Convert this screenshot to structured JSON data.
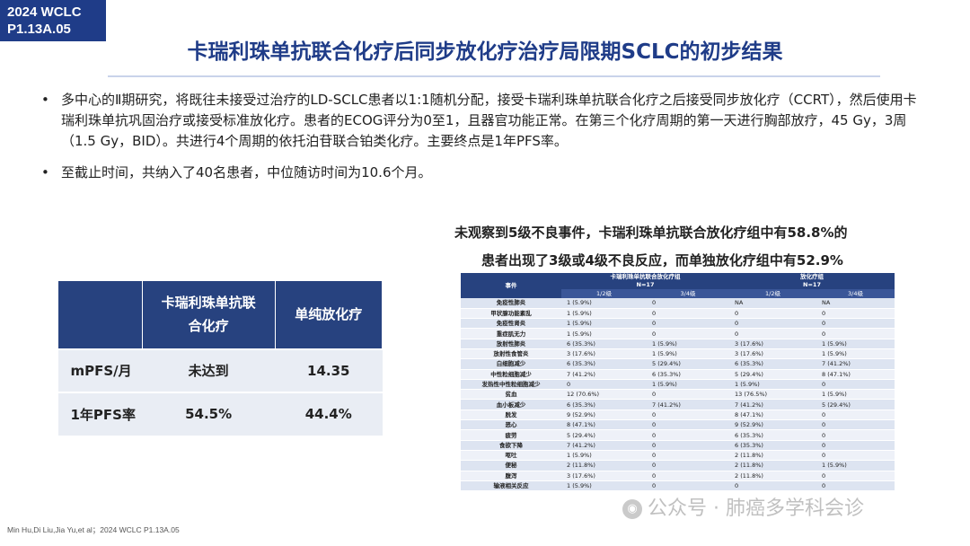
{
  "badge": {
    "line1": "2024 WCLC",
    "line2": "P1.13A.05"
  },
  "title": "卡瑞利珠单抗联合化疗后同步放化疗治疗局限期SCLC的初步结果",
  "bullets": [
    "多中心的Ⅱ期研究，将既往未接受过治疗的LD-SCLC患者以1:1随机分配，接受卡瑞利珠单抗联合化疗之后接受同步放化疗（CCRT），然后使用卡瑞利珠单抗巩固治疗或接受标准放化疗。患者的ECOG评分为0至1，且器官功能正常。在第三个化疗周期的第一天进行胸部放疗，45 Gy，3周（1.5 Gy，BID）。共进行4个周期的依托泊苷联合铂类化疗。主要终点是1年PFS率。",
    "至截止时间，共纳入了40名患者，中位随访时间为10.6个月。"
  ],
  "bullet_symbol": "•",
  "summary": {
    "line1": "未观察到5级不良事件，卡瑞利珠单抗联合放化疗组中有58.8%的",
    "line2": "患者出现了3级或4级不良反应，而单独放化疗组中有52.9%"
  },
  "comparison": {
    "headers": [
      "",
      "卡瑞利珠单抗联合化疗",
      "单纯放化疗"
    ],
    "rows": [
      {
        "label": "mPFS/月",
        "a": "未达到",
        "b": "14.35"
      },
      {
        "label": "1年PFS率",
        "a": "54.5%",
        "b": "44.4%"
      }
    ]
  },
  "ae_table": {
    "event_header": "事件",
    "group_a": "卡瑞利珠单抗联合放化疗组",
    "group_a_n": "N=17",
    "group_b": "放化疗组",
    "group_b_n": "N=17",
    "grade_headers": [
      "1/2级",
      "3/4级",
      "1/2级",
      "3/4级"
    ],
    "rows": [
      [
        "免疫性肺炎",
        "1 (5.9%)",
        "0",
        "NA",
        "NA"
      ],
      [
        "甲状腺功能紊乱",
        "1 (5.9%)",
        "0",
        "0",
        "0"
      ],
      [
        "免疫性肾炎",
        "1 (5.9%)",
        "0",
        "0",
        "0"
      ],
      [
        "重症肌无力",
        "1 (5.9%)",
        "0",
        "0",
        "0"
      ],
      [
        "放射性肺炎",
        "6 (35.3%)",
        "1 (5.9%)",
        "3 (17.6%)",
        "1 (5.9%)"
      ],
      [
        "放射性食管炎",
        "3 (17.6%)",
        "1 (5.9%)",
        "3 (17.6%)",
        "1 (5.9%)"
      ],
      [
        "白细胞减少",
        "6 (35.3%)",
        "5 (29.4%)",
        "6 (35.3%)",
        "7 (41.2%)"
      ],
      [
        "中性粒细胞减少",
        "7 (41.2%)",
        "6 (35.3%)",
        "5 (29.4%)",
        "8 (47.1%)"
      ],
      [
        "发热性中性粒细胞减少",
        "0",
        "1 (5.9%)",
        "1 (5.9%)",
        "0"
      ],
      [
        "贫血",
        "12 (70.6%)",
        "0",
        "13 (76.5%)",
        "1 (5.9%)"
      ],
      [
        "血小板减少",
        "6 (35.3%)",
        "7 (41.2%)",
        "7 (41.2%)",
        "5 (29.4%)"
      ],
      [
        "脱发",
        "9 (52.9%)",
        "0",
        "8 (47.1%)",
        "0"
      ],
      [
        "恶心",
        "8 (47.1%)",
        "0",
        "9 (52.9%)",
        "0"
      ],
      [
        "疲劳",
        "5 (29.4%)",
        "0",
        "6 (35.3%)",
        "0"
      ],
      [
        "食欲下降",
        "7 (41.2%)",
        "0",
        "6 (35.3%)",
        "0"
      ],
      [
        "呕吐",
        "1 (5.9%)",
        "0",
        "2 (11.8%)",
        "0"
      ],
      [
        "便秘",
        "2 (11.8%)",
        "0",
        "2 (11.8%)",
        "1 (5.9%)"
      ],
      [
        "腹泻",
        "3 (17.6%)",
        "0",
        "2 (11.8%)",
        "0"
      ],
      [
        "输液相关反应",
        "1 (5.9%)",
        "0",
        "0",
        "0"
      ]
    ]
  },
  "footer": "Min Hu,Di Liu,Jia Yu,et al；2024 WCLC P1.13A.05",
  "watermark": "公众号 · 肺癌多学科会诊",
  "watermark_icon": "wechat-icon",
  "colors": {
    "navy": "#1f3c88",
    "table_header": "#27427f",
    "table_body": "#e9edf4"
  }
}
